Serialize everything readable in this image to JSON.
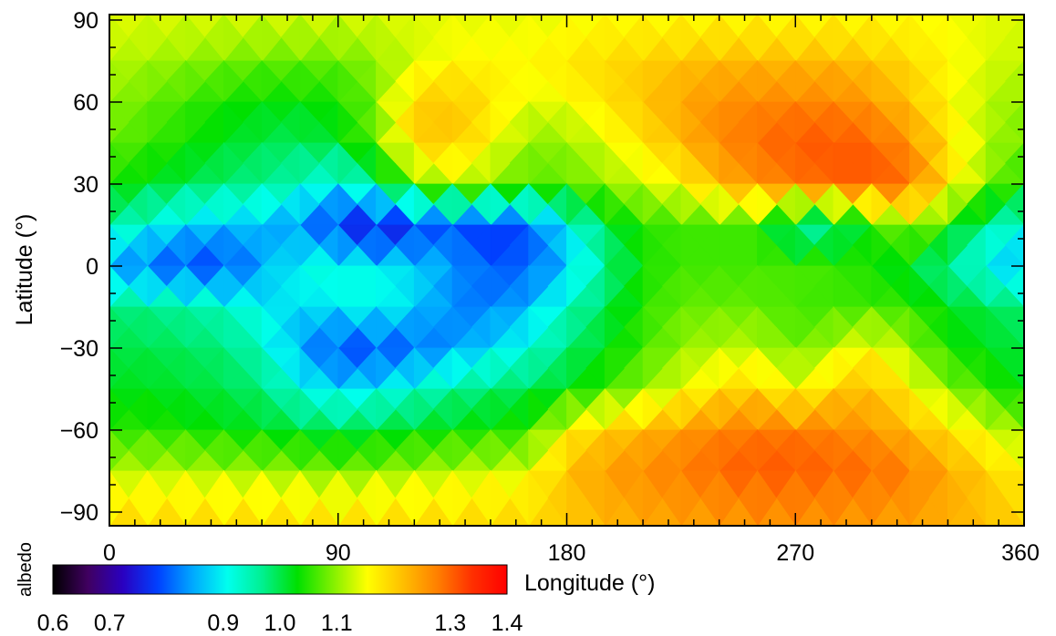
{
  "chart_data": {
    "type": "heatmap",
    "title": "",
    "xlabel": "Longitude (°)",
    "ylabel": "Latitude (°)",
    "xlim": [
      0,
      360
    ],
    "ylim": [
      -95,
      92
    ],
    "x_ticks": [
      0,
      90,
      180,
      270,
      360
    ],
    "y_ticks": [
      90,
      60,
      30,
      0,
      -30,
      -60,
      -90
    ],
    "y_tick_labels": [
      "90",
      "60",
      "30",
      "0",
      "−30",
      "−60",
      "−90"
    ],
    "grid": false,
    "colorbar": {
      "label": "albedo",
      "range": [
        0.6,
        1.4
      ],
      "ticks": [
        0.6,
        0.7,
        0.9,
        1.0,
        1.1,
        1.3,
        1.4
      ],
      "tick_labels": [
        "0.6",
        "0.7",
        "0.9",
        "1.0",
        "1.1",
        "1.3",
        "1.4"
      ],
      "colormap": [
        "#000000",
        "#400060",
        "#2a00c0",
        "#0040ff",
        "#00a8ff",
        "#00ffee",
        "#00f090",
        "#00e000",
        "#80f000",
        "#ffff00",
        "#ffc000",
        "#ff8000",
        "#ff3000",
        "#ff0000"
      ]
    },
    "field": {
      "description_lon_step": 15,
      "description_lat_step": 15,
      "lons": [
        0,
        15,
        30,
        45,
        60,
        75,
        90,
        105,
        120,
        135,
        150,
        165,
        180,
        195,
        210,
        225,
        240,
        255,
        270,
        285,
        300,
        315,
        330,
        345,
        360
      ],
      "lats": [
        90,
        75,
        60,
        45,
        30,
        15,
        0,
        -15,
        -30,
        -45,
        -60,
        -75,
        -90
      ],
      "values": [
        [
          1.14,
          1.14,
          1.14,
          1.14,
          1.14,
          1.14,
          1.14,
          1.14,
          1.14,
          1.14,
          1.14,
          1.14,
          1.14,
          1.15,
          1.15,
          1.15,
          1.15,
          1.15,
          1.15,
          1.15,
          1.15,
          1.15,
          1.15,
          1.14,
          1.14
        ],
        [
          1.12,
          1.11,
          1.1,
          1.09,
          1.08,
          1.08,
          1.08,
          1.1,
          1.13,
          1.16,
          1.16,
          1.16,
          1.18,
          1.19,
          1.2,
          1.21,
          1.22,
          1.22,
          1.22,
          1.22,
          1.21,
          1.19,
          1.16,
          1.14,
          1.12
        ],
        [
          1.1,
          1.08,
          1.06,
          1.04,
          1.03,
          1.03,
          1.04,
          1.09,
          1.2,
          1.21,
          1.18,
          1.14,
          1.15,
          1.18,
          1.21,
          1.24,
          1.26,
          1.27,
          1.27,
          1.27,
          1.25,
          1.21,
          1.16,
          1.12,
          1.1
        ],
        [
          1.08,
          1.06,
          1.04,
          1.02,
          1.0,
          0.99,
          1.02,
          1.08,
          1.2,
          1.21,
          1.16,
          1.1,
          1.1,
          1.14,
          1.18,
          1.22,
          1.27,
          1.29,
          1.31,
          1.31,
          1.3,
          1.26,
          1.18,
          1.12,
          1.08
        ],
        [
          1.04,
          1.02,
          1.0,
          0.98,
          0.97,
          0.95,
          0.9,
          0.98,
          1.08,
          1.12,
          1.1,
          1.07,
          1.08,
          1.1,
          1.13,
          1.16,
          1.22,
          1.26,
          1.28,
          1.3,
          1.31,
          1.29,
          1.18,
          1.1,
          1.04
        ],
        [
          0.96,
          0.92,
          0.88,
          0.87,
          0.86,
          0.82,
          0.76,
          0.72,
          0.76,
          0.8,
          0.76,
          0.8,
          0.9,
          1.0,
          1.05,
          1.06,
          1.06,
          1.06,
          0.94,
          0.96,
          1.04,
          1.12,
          1.05,
          0.96,
          0.92
        ],
        [
          0.84,
          0.8,
          0.78,
          0.78,
          0.84,
          0.92,
          0.92,
          0.9,
          0.88,
          0.84,
          0.8,
          0.8,
          0.86,
          0.96,
          1.04,
          1.06,
          1.06,
          1.06,
          1.07,
          1.06,
          1.04,
          1.0,
          0.96,
          0.9,
          0.84
        ],
        [
          0.98,
          0.97,
          0.96,
          0.94,
          0.9,
          0.88,
          0.9,
          0.92,
          0.88,
          0.82,
          0.82,
          0.86,
          0.94,
          1.0,
          1.05,
          1.08,
          1.08,
          1.08,
          1.06,
          1.06,
          1.06,
          1.06,
          1.02,
          1.0,
          0.98
        ],
        [
          1.0,
          1.0,
          0.99,
          0.98,
          0.94,
          0.84,
          0.78,
          0.78,
          0.8,
          0.84,
          0.88,
          0.92,
          0.98,
          1.02,
          1.06,
          1.1,
          1.12,
          1.12,
          1.08,
          1.12,
          1.16,
          1.1,
          1.04,
          1.02,
          1.0
        ],
        [
          1.02,
          1.02,
          1.01,
          1.0,
          0.98,
          0.92,
          0.88,
          0.9,
          0.93,
          0.96,
          0.98,
          1.0,
          1.02,
          1.06,
          1.1,
          1.14,
          1.18,
          1.2,
          1.14,
          1.2,
          1.22,
          1.16,
          1.1,
          1.06,
          1.02
        ],
        [
          1.05,
          1.05,
          1.04,
          1.03,
          1.02,
          1.01,
          1.0,
          1.01,
          1.02,
          1.03,
          1.04,
          1.05,
          1.16,
          1.2,
          1.22,
          1.25,
          1.27,
          1.28,
          1.28,
          1.27,
          1.25,
          1.22,
          1.18,
          1.14,
          1.1
        ],
        [
          1.12,
          1.12,
          1.12,
          1.11,
          1.11,
          1.1,
          1.09,
          1.1,
          1.11,
          1.12,
          1.13,
          1.14,
          1.22,
          1.25,
          1.27,
          1.28,
          1.3,
          1.31,
          1.31,
          1.3,
          1.3,
          1.28,
          1.24,
          1.2,
          1.16
        ],
        [
          1.2,
          1.2,
          1.2,
          1.2,
          1.2,
          1.2,
          1.2,
          1.2,
          1.2,
          1.2,
          1.2,
          1.2,
          1.2,
          1.22,
          1.23,
          1.24,
          1.24,
          1.25,
          1.25,
          1.25,
          1.24,
          1.24,
          1.23,
          1.22,
          1.2
        ]
      ]
    }
  }
}
